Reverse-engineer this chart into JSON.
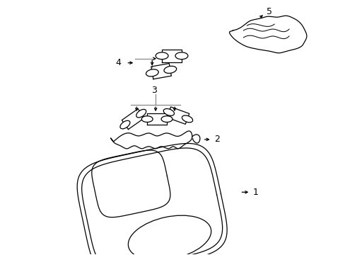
{
  "bg_color": "#ffffff",
  "line_color": "#000000",
  "lw": 0.9,
  "figsize": [
    4.89,
    3.6
  ],
  "dpi": 100
}
